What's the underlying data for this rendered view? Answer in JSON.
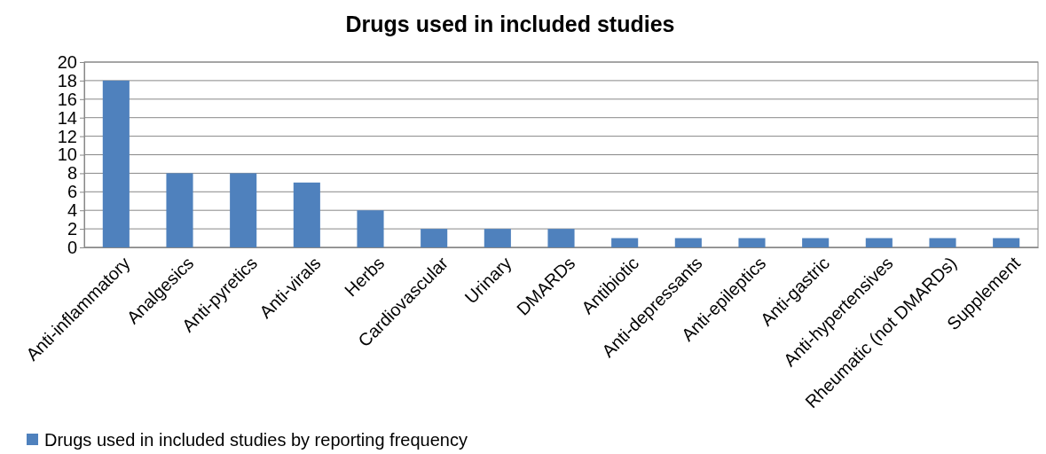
{
  "chart_data": {
    "type": "bar",
    "title": "Drugs used in included studies",
    "categories": [
      "Anti-inflammatory",
      "Analgesics",
      "Anti-pyretics",
      "Anti-virals",
      "Herbs",
      "Cardiovascular",
      "Urinary",
      "DMARDs",
      "Antibiotic",
      "Anti-depressants",
      "Anti-epileptics",
      "Anti-gastric",
      "Anti-hypertensives",
      "Rheumatic (not DMARDs)",
      "Supplement"
    ],
    "series": [
      {
        "name": "Drugs used in included studies by reporting frequency",
        "color": "#4f81bd",
        "values": [
          18,
          8,
          8,
          7,
          4,
          2,
          2,
          2,
          1,
          1,
          1,
          1,
          1,
          1,
          1
        ]
      }
    ],
    "ylim": [
      0,
      20
    ],
    "yticks": [
      0,
      2,
      4,
      6,
      8,
      10,
      12,
      14,
      16,
      18,
      20
    ],
    "grid": "y",
    "legend": "bottom left"
  }
}
